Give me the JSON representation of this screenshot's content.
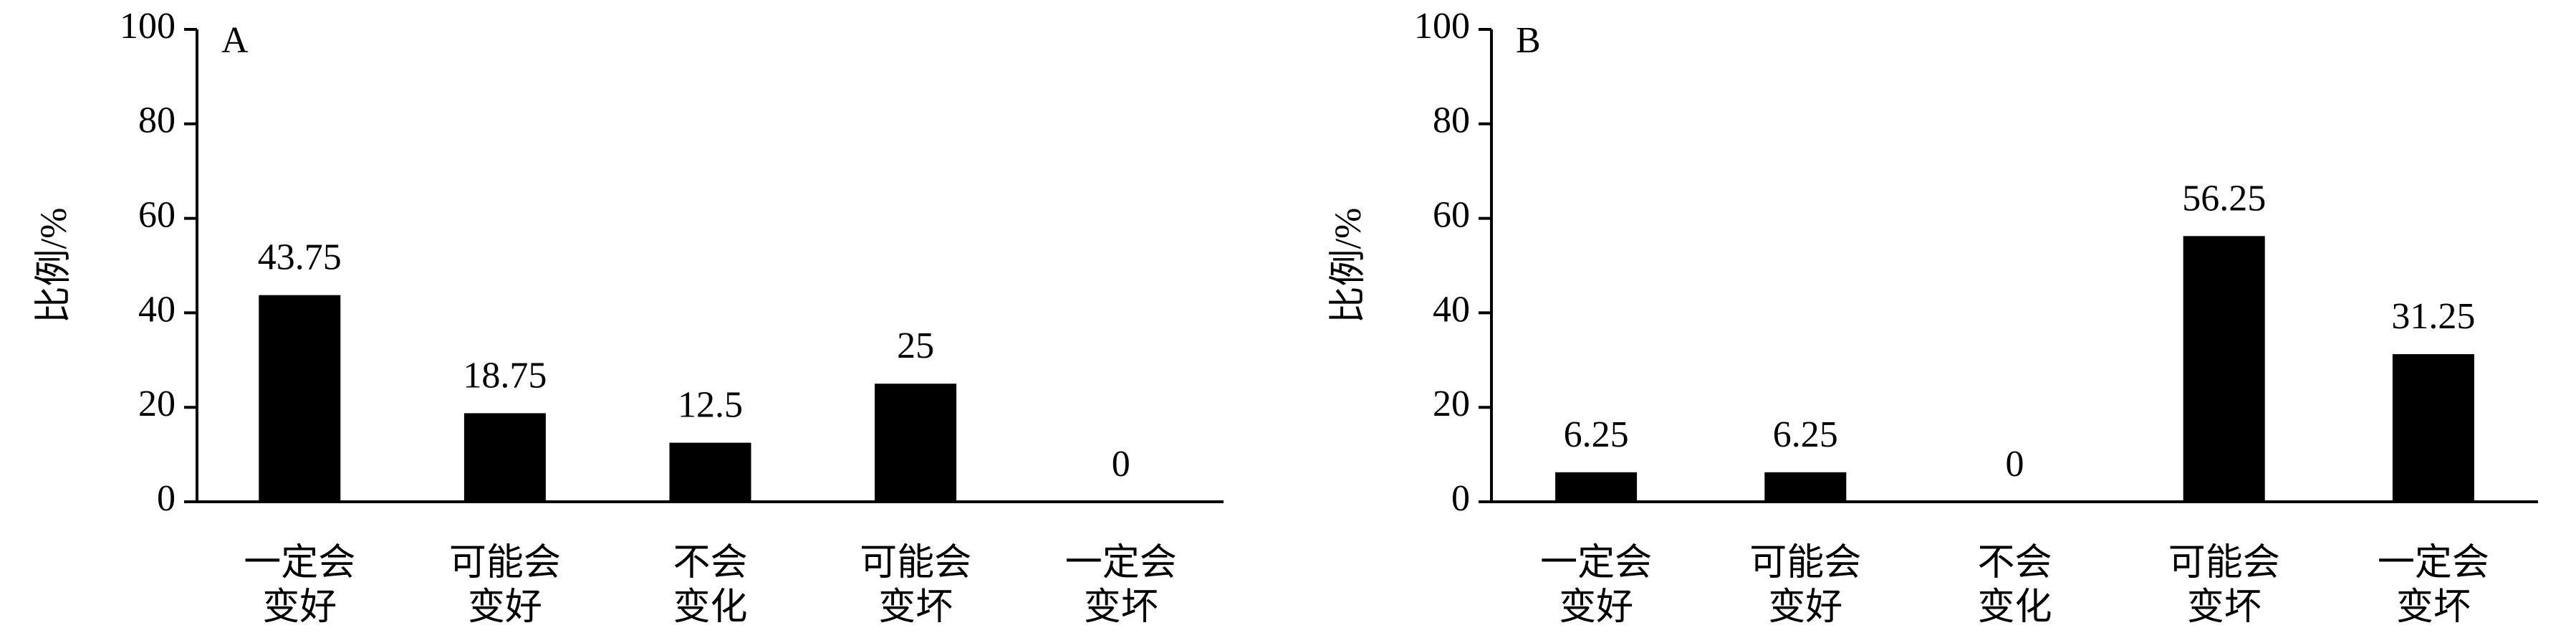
{
  "chart_data": [
    {
      "type": "bar",
      "panel_label": "A",
      "ylabel": "比例/%",
      "categories": [
        "一定会\n变好",
        "可能会\n变好",
        "不会\n变化",
        "可能会\n变坏",
        "一定会\n变坏"
      ],
      "values": [
        43.75,
        18.75,
        12.5,
        25,
        0
      ],
      "color": "#000000",
      "ylim": [
        0,
        100
      ],
      "yticks": [
        0,
        20,
        40,
        60,
        80,
        100
      ],
      "grid": false
    },
    {
      "type": "bar",
      "panel_label": "B",
      "ylabel": "比例/%",
      "categories": [
        "一定会\n变好",
        "可能会\n变好",
        "不会\n变化",
        "可能会\n变坏",
        "一定会\n变坏"
      ],
      "values": [
        6.25,
        6.25,
        0,
        56.25,
        31.25
      ],
      "color": "#000000",
      "ylim": [
        0,
        100
      ],
      "yticks": [
        0,
        20,
        40,
        60,
        80,
        100
      ],
      "grid": false
    }
  ]
}
